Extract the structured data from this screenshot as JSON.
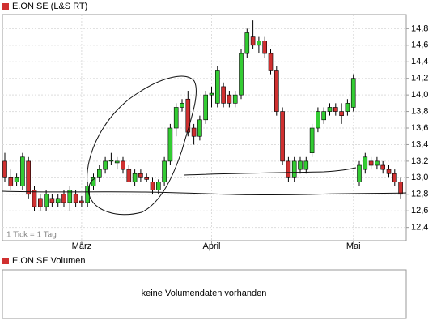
{
  "chart_data": {
    "type": "candlestick",
    "title": "E.ON SE (L&S RT)",
    "annotation": "1 Tick = 1 Tag",
    "legend_color": "#d03030",
    "up_color": "#33cc33",
    "down_color": "#d03030",
    "categories": [
      null,
      null,
      null,
      null,
      null,
      null,
      null,
      null,
      null,
      null,
      null,
      null,
      null,
      "März",
      null,
      null,
      null,
      null,
      null,
      null,
      null,
      null,
      null,
      null,
      null,
      null,
      null,
      null,
      null,
      null,
      null,
      null,
      null,
      null,
      null,
      "April",
      null,
      null,
      null,
      null,
      null,
      null,
      null,
      null,
      null,
      null,
      null,
      null,
      null,
      null,
      null,
      null,
      null,
      null,
      null,
      null,
      null,
      null,
      null,
      "Mai",
      null,
      null,
      null,
      null,
      null,
      null,
      null,
      null
    ],
    "open": [
      13.2,
      13.0,
      12.95,
      12.9,
      13.2,
      12.85,
      12.75,
      12.65,
      12.75,
      12.7,
      12.8,
      12.7,
      12.8,
      12.72,
      12.7,
      12.9,
      13.0,
      13.1,
      13.2,
      13.18,
      13.2,
      13.1,
      12.95,
      13.05,
      13.0,
      12.95,
      12.85,
      12.95,
      13.2,
      13.6,
      13.85,
      13.95,
      13.6,
      13.5,
      13.7,
      14.0,
      13.9,
      14.1,
      14.0,
      13.9,
      14.0,
      14.5,
      14.7,
      14.6,
      14.65,
      14.5,
      14.3,
      13.8,
      13.2,
      13.0,
      13.1,
      13.1,
      13.3,
      13.6,
      13.7,
      13.8,
      13.85,
      13.8,
      13.8,
      13.85,
      12.95,
      13.1,
      13.2,
      13.15,
      13.15,
      13.1,
      13.05,
      12.95
    ],
    "high": [
      13.3,
      13.1,
      13.05,
      13.3,
      13.25,
      12.9,
      12.8,
      12.85,
      12.8,
      12.8,
      12.85,
      12.9,
      12.85,
      12.78,
      12.95,
      13.05,
      13.15,
      13.25,
      13.3,
      13.25,
      13.25,
      13.15,
      13.1,
      13.1,
      13.05,
      13.0,
      12.98,
      13.25,
      13.65,
      13.9,
      13.95,
      14.05,
      13.65,
      13.75,
      14.05,
      14.1,
      14.35,
      14.15,
      14.05,
      14.05,
      14.55,
      14.8,
      14.9,
      14.7,
      14.7,
      14.55,
      14.35,
      13.85,
      13.25,
      13.25,
      13.25,
      13.25,
      13.65,
      13.85,
      13.85,
      13.9,
      13.9,
      13.9,
      13.95,
      14.25,
      13.2,
      13.3,
      13.25,
      13.25,
      13.2,
      13.15,
      13.1,
      13.0
    ],
    "low": [
      12.95,
      12.85,
      12.9,
      12.85,
      12.75,
      12.6,
      12.6,
      12.6,
      12.65,
      12.65,
      12.65,
      12.6,
      12.65,
      12.65,
      12.65,
      12.85,
      12.95,
      13.05,
      13.15,
      13.1,
      13.05,
      12.95,
      12.9,
      12.95,
      12.95,
      12.8,
      12.8,
      12.9,
      13.15,
      13.5,
      13.8,
      13.5,
      13.4,
      13.45,
      13.65,
      13.85,
      13.85,
      13.85,
      13.85,
      13.85,
      13.95,
      14.45,
      14.55,
      14.5,
      14.45,
      14.25,
      13.75,
      13.15,
      12.95,
      12.95,
      13.05,
      13.05,
      13.25,
      13.55,
      13.65,
      13.75,
      13.75,
      13.65,
      13.75,
      13.8,
      12.9,
      13.05,
      13.1,
      13.1,
      13.05,
      13.0,
      12.9,
      12.75
    ],
    "close": [
      13.0,
      12.9,
      13.0,
      13.25,
      12.8,
      12.65,
      12.65,
      12.8,
      12.7,
      12.75,
      12.7,
      12.85,
      12.7,
      12.7,
      12.9,
      13.0,
      13.1,
      13.2,
      13.21,
      13.2,
      13.1,
      12.95,
      13.05,
      13.0,
      12.98,
      12.85,
      12.95,
      13.2,
      13.6,
      13.85,
      13.9,
      13.55,
      13.5,
      13.7,
      14.0,
      14.02,
      14.3,
      13.9,
      13.9,
      14.0,
      14.5,
      14.75,
      14.6,
      14.65,
      14.5,
      14.3,
      13.8,
      13.2,
      13.0,
      13.2,
      13.2,
      13.2,
      13.6,
      13.8,
      13.8,
      13.85,
      13.8,
      13.75,
      13.9,
      14.2,
      13.15,
      13.25,
      13.15,
      13.2,
      13.1,
      13.05,
      12.95,
      12.8
    ],
    "ylim": [
      12.24,
      14.97
    ],
    "yticks": [
      {
        "value": 12.4,
        "label": "12,4"
      },
      {
        "value": 12.6,
        "label": "12,6"
      },
      {
        "value": 12.8,
        "label": "12,8"
      },
      {
        "value": 13.0,
        "label": "13,0"
      },
      {
        "value": 13.2,
        "label": "13,2"
      },
      {
        "value": 13.4,
        "label": "13,4"
      },
      {
        "value": 13.6,
        "label": "13,6"
      },
      {
        "value": 13.8,
        "label": "13,8"
      },
      {
        "value": 14.0,
        "label": "14,0"
      },
      {
        "value": 14.2,
        "label": "14,2"
      },
      {
        "value": 14.4,
        "label": "14,4"
      },
      {
        "value": 14.6,
        "label": "14,6"
      },
      {
        "value": 14.8,
        "label": "14,8"
      }
    ],
    "grid": true
  },
  "volume_panel": {
    "title": "E.ON SE Volumen",
    "message": "keine Volumendaten vorhanden"
  }
}
